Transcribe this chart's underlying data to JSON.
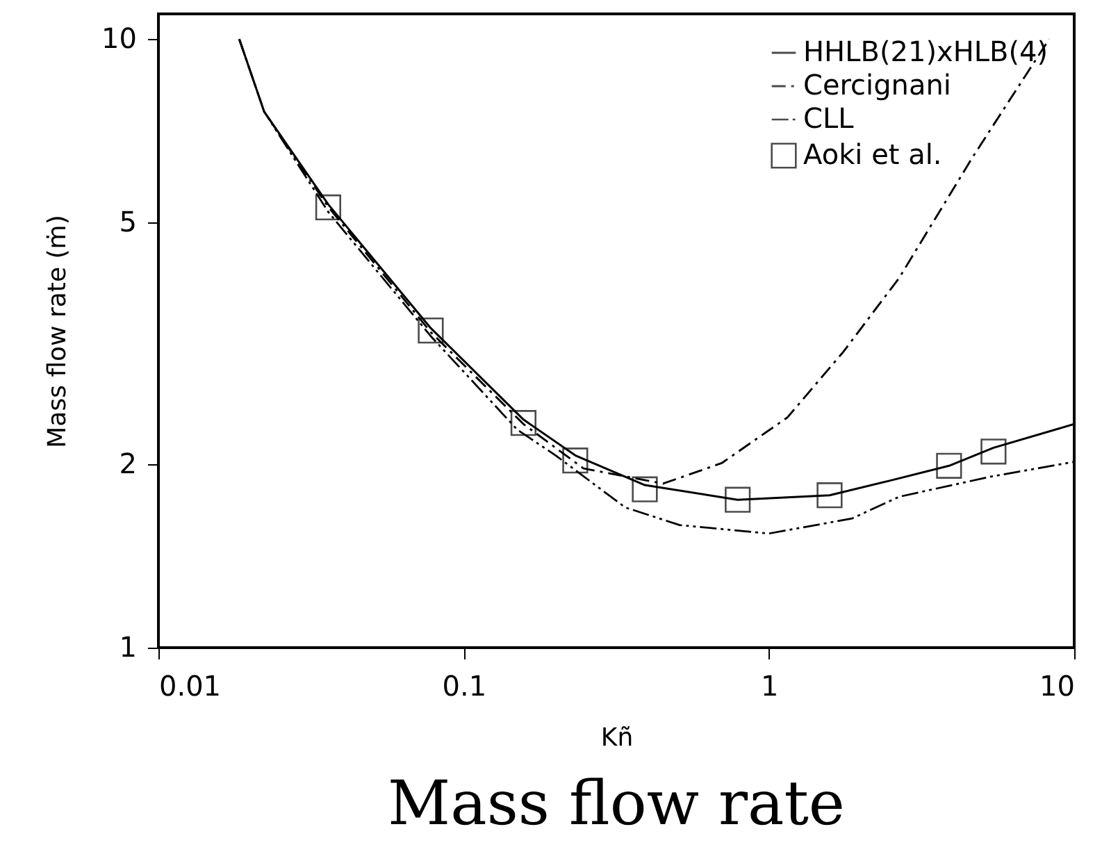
{
  "chart_data": {
    "type": "line",
    "title": "Mass flow rate",
    "xlabel": "Kñ",
    "ylabel": "Mass flow rate (ṁ)",
    "log": "xy",
    "xlim": [
      0.01,
      10
    ],
    "xticks": [
      0.01,
      0.1,
      1,
      10
    ],
    "ylim": [
      1,
      11
    ],
    "yticks": [
      1,
      2,
      5,
      10
    ],
    "grid": false,
    "legend": "top right",
    "series": [
      {
        "name": "HHLB(21)xHLB(4)",
        "color": "#000000",
        "line_style": "solid",
        "marker": "none",
        "x": [
          0.0184,
          0.0222,
          0.036,
          0.078,
          0.157,
          0.232,
          0.392,
          0.79,
          1.58,
          2.48,
          3.89,
          5.44,
          10
        ],
        "values": [
          10.0,
          7.6,
          5.35,
          3.35,
          2.37,
          2.07,
          1.85,
          1.75,
          1.78,
          1.88,
          1.99,
          2.13,
          2.33
        ]
      },
      {
        "name": "Cercignani",
        "color": "#000000",
        "line_style": "dashdot",
        "marker": "none",
        "x": [
          0.0184,
          0.0222,
          0.036,
          0.078,
          0.157,
          0.247,
          0.45,
          0.7,
          1.15,
          1.75,
          2.67,
          4.65,
          8.28
        ],
        "values": [
          10.0,
          7.6,
          5.3,
          3.3,
          2.33,
          1.97,
          1.86,
          2.01,
          2.39,
          3.06,
          4.05,
          6.4,
          10.0
        ]
      },
      {
        "name": "CLL",
        "color": "#000000",
        "line_style": "dashdotdot",
        "marker": "none",
        "x": [
          0.0184,
          0.0222,
          0.036,
          0.078,
          0.15,
          0.2,
          0.338,
          0.51,
          1.0,
          1.87,
          2.67,
          5.33,
          10
        ],
        "values": [
          10.0,
          7.6,
          5.2,
          3.25,
          2.28,
          2.07,
          1.7,
          1.59,
          1.54,
          1.63,
          1.77,
          1.91,
          2.02
        ]
      },
      {
        "name": "Aoki et al.",
        "color": "#000000",
        "type": "scatter",
        "marker": "square",
        "x": [
          0.036,
          0.078,
          0.157,
          0.232,
          0.392,
          0.79,
          1.58,
          3.89,
          5.44
        ],
        "values": [
          5.29,
          3.32,
          2.34,
          2.03,
          1.82,
          1.75,
          1.78,
          1.99,
          2.1
        ]
      }
    ]
  }
}
